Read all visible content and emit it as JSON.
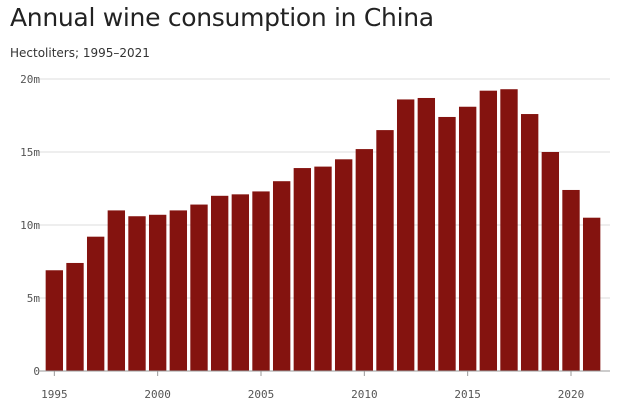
{
  "chart_data": {
    "type": "bar",
    "title": "Annual wine consumption in China",
    "subtitle": "Hectoliters; 1995–2021",
    "xlabel": "",
    "ylabel": "",
    "categories": [
      1995,
      1996,
      1997,
      1998,
      1999,
      2000,
      2001,
      2002,
      2003,
      2004,
      2005,
      2006,
      2007,
      2008,
      2009,
      2010,
      2011,
      2012,
      2013,
      2014,
      2015,
      2016,
      2017,
      2018,
      2019,
      2020,
      2021
    ],
    "values": [
      6.9,
      7.4,
      9.2,
      11.0,
      10.6,
      10.7,
      11.0,
      11.4,
      12.0,
      12.1,
      12.3,
      13.0,
      13.9,
      14.0,
      14.5,
      15.2,
      16.5,
      18.6,
      18.7,
      17.4,
      18.1,
      19.2,
      19.3,
      17.6,
      15.0,
      12.4,
      10.5
    ],
    "value_unit": "millions of hectoliters",
    "ylim": [
      0,
      20
    ],
    "yticks": [
      0,
      5,
      10,
      15,
      20
    ],
    "ytick_labels": [
      "0",
      "5m",
      "10m",
      "15m",
      "20m"
    ],
    "xticks": [
      1995,
      2000,
      2005,
      2010,
      2015,
      2020
    ],
    "xtick_labels": [
      "1995",
      "2000",
      "2005",
      "2010",
      "2015",
      "2020"
    ],
    "grid": "horizontal",
    "legend": "none",
    "bar_color": "#84130f"
  }
}
